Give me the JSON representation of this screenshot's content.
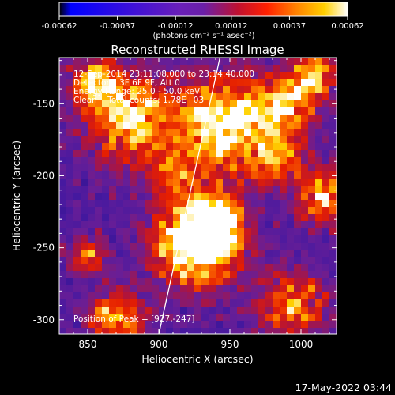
{
  "chart_data": {
    "type": "heatmap",
    "title": "Reconstructed RHESSI Image",
    "xlabel": "Heliocentric X (arcsec)",
    "ylabel": "Heliocentric Y (arcsec)",
    "xlim": [
      830,
      1025
    ],
    "ylim": [
      -310,
      -118
    ],
    "x_ticks": [
      850,
      900,
      950,
      1000
    ],
    "y_ticks": [
      -300,
      -250,
      -200,
      -150
    ],
    "colorscale": "RHESSI red-temperature (black → blue → purple → red → orange → yellow → white)",
    "colorbar": {
      "min": -0.00062,
      "max": 0.00062,
      "tick_values": [
        -0.00062,
        -0.00037,
        -0.00012,
        0.00012,
        0.00037,
        0.00062
      ],
      "tick_labels": [
        "-0.00062",
        "-0.00037",
        "-0.00012",
        "0.00012",
        "0.00037",
        "0.00062"
      ],
      "unit_label": "(photons cm⁻² s⁻¹ asec⁻²)"
    },
    "annotations": {
      "time_range": "12-Sep-2014 23:11:08.000 to 23:14:40.000",
      "detectors": "Detectors: 3F 6F 9F, Att 0",
      "energy_range": "Energy Range: 25.0 - 50.0 keV",
      "algorithm": "Clean    Total counts: 1.78E+03",
      "peak": "Position of Peak = [927,-247]"
    },
    "peak_position": [
      927,
      -247
    ],
    "limb_line": [
      [
        900,
        -310
      ],
      [
        943,
        -118
      ]
    ]
  },
  "footer": {
    "date_stamp": "17-May-2022 03:44"
  },
  "colors": {
    "background": "#000000",
    "foreground": "#ffffff"
  }
}
